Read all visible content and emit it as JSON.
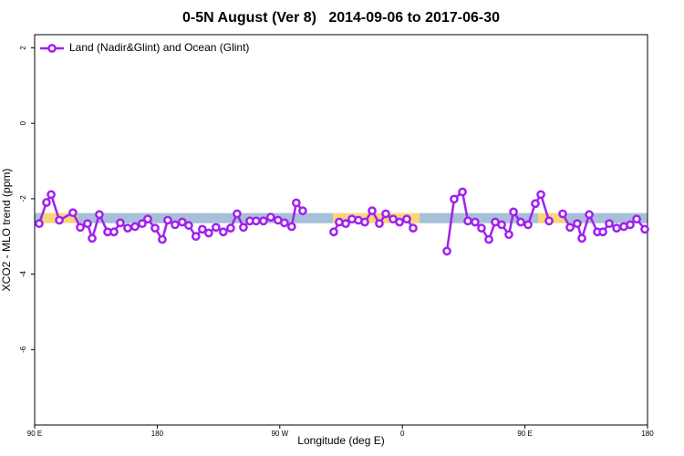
{
  "chart_data": {
    "type": "line",
    "title": "0-5N August (Ver 8)   2014-09-06 to 2017-06-30",
    "x_label": "Longitude (deg E)",
    "y_label": "XCO2 - MLO trend (ppm)",
    "xlim": [
      90,
      540
    ],
    "ylim": [
      -8,
      2.35
    ],
    "xticks": [
      {
        "value": 90,
        "label": "90 E"
      },
      180,
      {
        "value": 270,
        "label": "90 W"
      },
      {
        "value": 360,
        "label": "0"
      },
      {
        "value": 450,
        "label": "90 E"
      },
      {
        "value": 540,
        "label": "180"
      }
    ],
    "yticks": [
      2,
      0,
      -2,
      -4,
      -6
    ],
    "legend": "top-left",
    "bands": [
      {
        "x": [
          90,
          96
        ],
        "y": [
          -2.65,
          -2.38
        ],
        "color": "#a8bfd8"
      },
      {
        "x": [
          96,
          121.5
        ],
        "y": [
          -2.65,
          -2.38
        ],
        "color": "#f7d57a"
      },
      {
        "x": [
          121.5,
          309
        ],
        "y": [
          -2.65,
          -2.38
        ],
        "color": "#a8bfd8"
      },
      {
        "x": [
          309,
          372.6
        ],
        "y": [
          -2.65,
          -2.38
        ],
        "color": "#f7d57a"
      },
      {
        "x": [
          372.6,
          459.6
        ],
        "y": [
          -2.65,
          -2.38
        ],
        "color": "#a8bfd8"
      },
      {
        "x": [
          459.6,
          479.7
        ],
        "y": [
          -2.65,
          -2.38
        ],
        "color": "#f7d57a"
      },
      {
        "x": [
          479.7,
          540
        ],
        "y": [
          -2.65,
          -2.38
        ],
        "color": "#a8bfd8"
      }
    ],
    "series": [
      {
        "name": "Land (Nadir&Glint) and Ocean (Glint)",
        "color": "#a020f0",
        "x": [
          93.3,
          98.7,
          102.1,
          108.1,
          118.1,
          123.5,
          128.8,
          132.2,
          137.5,
          143.6,
          148.2,
          152.9,
          158.3,
          163.7,
          169.0,
          173.0,
          178.4,
          183.7,
          187.7,
          193.1,
          198.4,
          203.1,
          208.4,
          213.1,
          217.8,
          223.2,
          228.5,
          233.9,
          238.6,
          243.3,
          248.0,
          252.6,
          258.0,
          263.3,
          268.7,
          273.4,
          278.7,
          282.1,
          286.8,
          298,
          309.6,
          313.6,
          318.4,
          323.0,
          327.7,
          332.4,
          337.8,
          343.1,
          347.8,
          353.2,
          357.9,
          363.2,
          367.9,
          380,
          392.7,
          398.0,
          404.1,
          408.1,
          413.4,
          418.1,
          423.5,
          428.2,
          432.9,
          438.2,
          441.6,
          446.9,
          452.3,
          457.6,
          461.7,
          467.7,
          472,
          477.7,
          483.1,
          488.4,
          491.8,
          497.2,
          503.2,
          507.2,
          511.9,
          517.3,
          522.6,
          527.3,
          532.0,
          538.0
        ],
        "values": [
          -2.66,
          -2.1,
          -1.89,
          -2.57,
          -2.37,
          -2.76,
          -2.66,
          -3.05,
          -2.42,
          -2.88,
          -2.88,
          -2.64,
          -2.78,
          -2.74,
          -2.66,
          -2.54,
          -2.78,
          -3.08,
          -2.57,
          -2.69,
          -2.62,
          -2.71,
          -3.0,
          -2.81,
          -2.91,
          -2.76,
          -2.88,
          -2.78,
          -2.4,
          -2.76,
          -2.59,
          -2.59,
          -2.59,
          -2.49,
          -2.57,
          -2.64,
          -2.74,
          -2.11,
          -2.32,
          null,
          -2.88,
          -2.62,
          -2.66,
          -2.54,
          -2.57,
          -2.62,
          -2.32,
          -2.66,
          -2.4,
          -2.54,
          -2.62,
          -2.54,
          -2.78,
          null,
          -3.39,
          -2.01,
          -1.82,
          -2.59,
          -2.62,
          -2.78,
          -3.08,
          -2.62,
          -2.69,
          -2.95,
          -2.35,
          -2.62,
          -2.69,
          -2.13,
          -1.89,
          -2.59,
          null,
          -2.4,
          -2.76,
          -2.66,
          -3.05,
          -2.42,
          -2.88,
          -2.88,
          -2.66,
          -2.78,
          -2.74,
          -2.69,
          -2.54,
          -2.81
        ]
      }
    ]
  }
}
